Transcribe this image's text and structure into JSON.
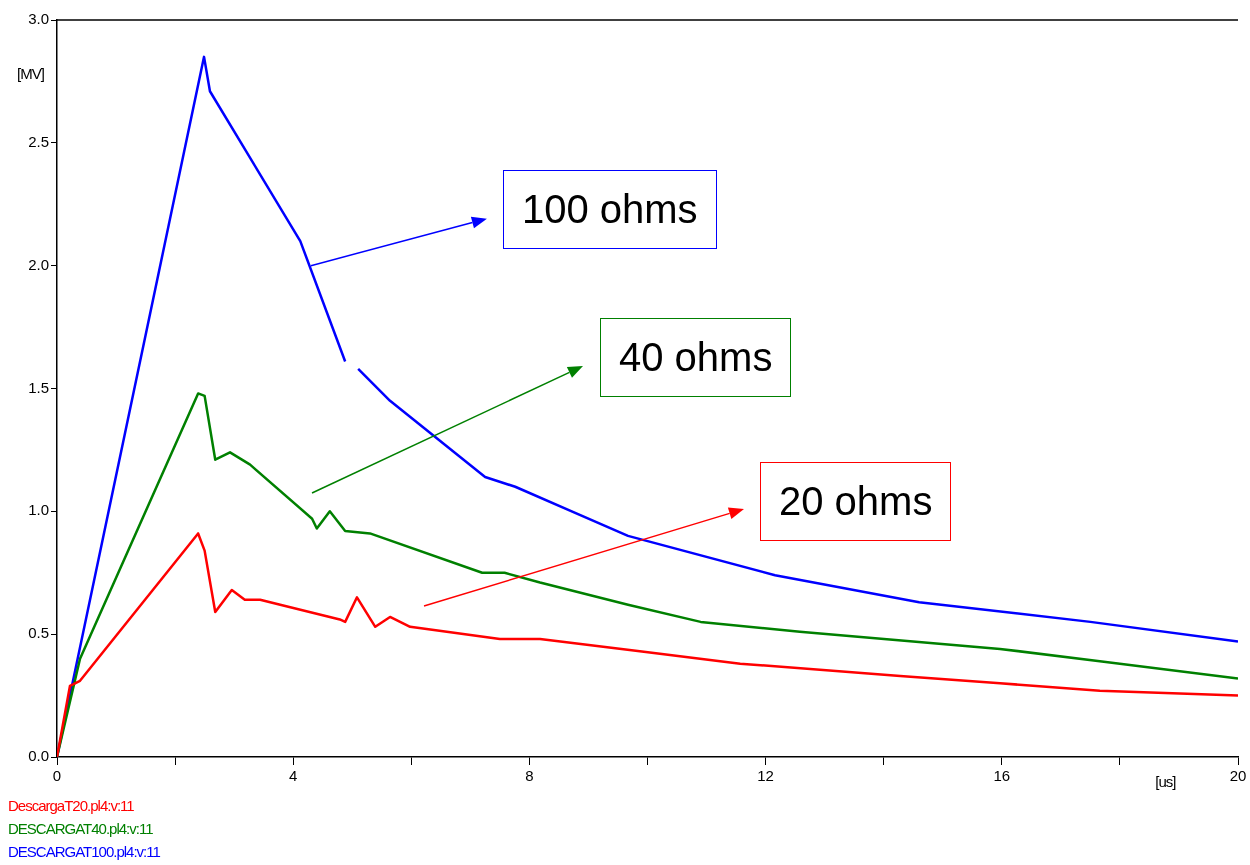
{
  "chart_data": {
    "type": "line",
    "xlabel": "[us]",
    "ylabel": "[MV]",
    "xlim": [
      0,
      20
    ],
    "xticks": [
      0,
      {
        "value": 2,
        "label": null
      },
      4,
      {
        "value": 6,
        "label": null
      },
      8,
      {
        "value": 10,
        "label": null
      },
      12,
      {
        "value": 14,
        "label": null
      },
      16,
      {
        "value": 18,
        "label": null
      },
      20
    ],
    "ylim": [
      0,
      3.0
    ],
    "yticks": [
      {
        "value": 0,
        "label": "0.0"
      },
      0.5,
      {
        "value": 1,
        "label": "1.0"
      },
      1.5,
      {
        "value": 2,
        "label": "2.0"
      },
      2.5,
      {
        "value": 3,
        "label": "3.0"
      }
    ],
    "grid": false,
    "legend": "bottom left",
    "marker": "none",
    "line_style": "solid",
    "series": [
      {
        "name": "DescargaT20.pl4:v:11",
        "color": "#ff0000",
        "x": [
          0,
          0.22,
          0.39,
          2.39,
          2.5,
          2.68,
          2.96,
          3.18,
          3.44,
          3.78,
          4.79,
          4.88,
          5.08,
          5.39,
          5.64,
          5.98,
          7.5,
          8.18,
          9.87,
          11.57,
          14.28,
          15.97,
          17.66,
          20
        ],
        "values": [
          0,
          0.29,
          0.31,
          0.91,
          0.84,
          0.59,
          0.68,
          0.64,
          0.64,
          0.62,
          0.56,
          0.55,
          0.65,
          0.53,
          0.57,
          0.53,
          0.48,
          0.48,
          0.43,
          0.38,
          0.33,
          0.3,
          0.27,
          0.25
        ]
      },
      {
        "name": "DESCARGAT40.pl4:v:11",
        "color": "#008000",
        "x": [
          0,
          0.39,
          2.39,
          2.5,
          2.68,
          2.93,
          3.27,
          4.32,
          4.4,
          4.62,
          4.88,
          5.3,
          7.2,
          7.58,
          8.18,
          9.67,
          10.9,
          12.58,
          15.97,
          17.66,
          20
        ],
        "values": [
          0,
          0.4,
          1.48,
          1.47,
          1.21,
          1.24,
          1.19,
          0.97,
          0.93,
          1.0,
          0.92,
          0.91,
          0.75,
          0.75,
          0.71,
          0.62,
          0.55,
          0.51,
          0.44,
          0.39,
          0.32
        ]
      },
      {
        "name": "DESCARGAT100.pl4:v:11",
        "color": "#0000ff",
        "x": [
          0,
          2.49,
          2.59,
          4.12,
          4.88,
          4.98,
          5.1,
          5.64,
          7.25,
          7.76,
          9.67,
          12.16,
          14.6,
          17.5,
          20
        ],
        "values": [
          0,
          2.85,
          2.71,
          2.1,
          1.61,
          null,
          1.58,
          1.45,
          1.14,
          1.1,
          0.9,
          0.74,
          0.63,
          0.55,
          0.47
        ]
      }
    ],
    "annotations": [
      "20 ohms",
      "40 ohms",
      {
        "text": "100 ohms",
        "x": 4.3,
        "y": 2.0
      }
    ]
  }
}
